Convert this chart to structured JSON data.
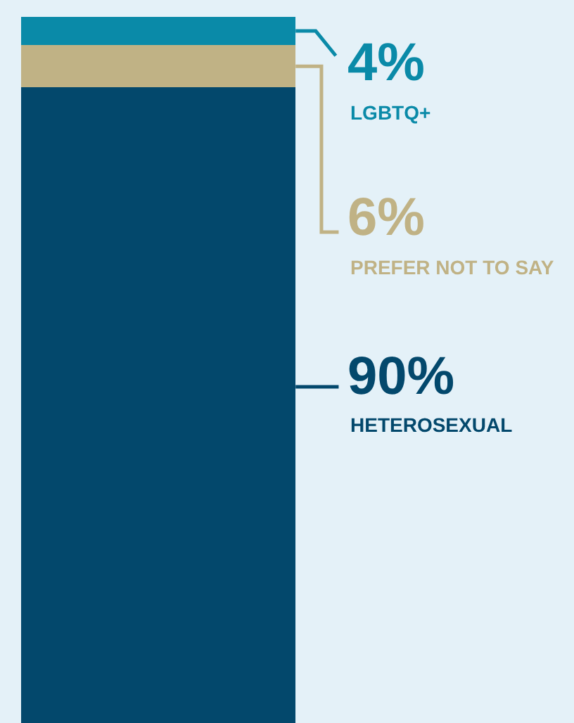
{
  "chart_data": {
    "type": "bar",
    "stacked": true,
    "categories": [
      null
    ],
    "ylim": [
      0,
      100
    ],
    "tick_labels": false,
    "series": [
      {
        "name": "HETEROSEXUAL",
        "color": "#03486c",
        "values": [
          90
        ],
        "value_labels": [
          "90%"
        ]
      },
      {
        "name": "PREFER NOT TO SAY",
        "color": "#c0b285",
        "values": [
          6
        ],
        "value_labels": [
          "6%"
        ]
      },
      {
        "name": "LGBTQ+",
        "color": "#0a8aa8",
        "values": [
          4
        ],
        "value_labels": [
          "4%"
        ]
      }
    ]
  }
}
